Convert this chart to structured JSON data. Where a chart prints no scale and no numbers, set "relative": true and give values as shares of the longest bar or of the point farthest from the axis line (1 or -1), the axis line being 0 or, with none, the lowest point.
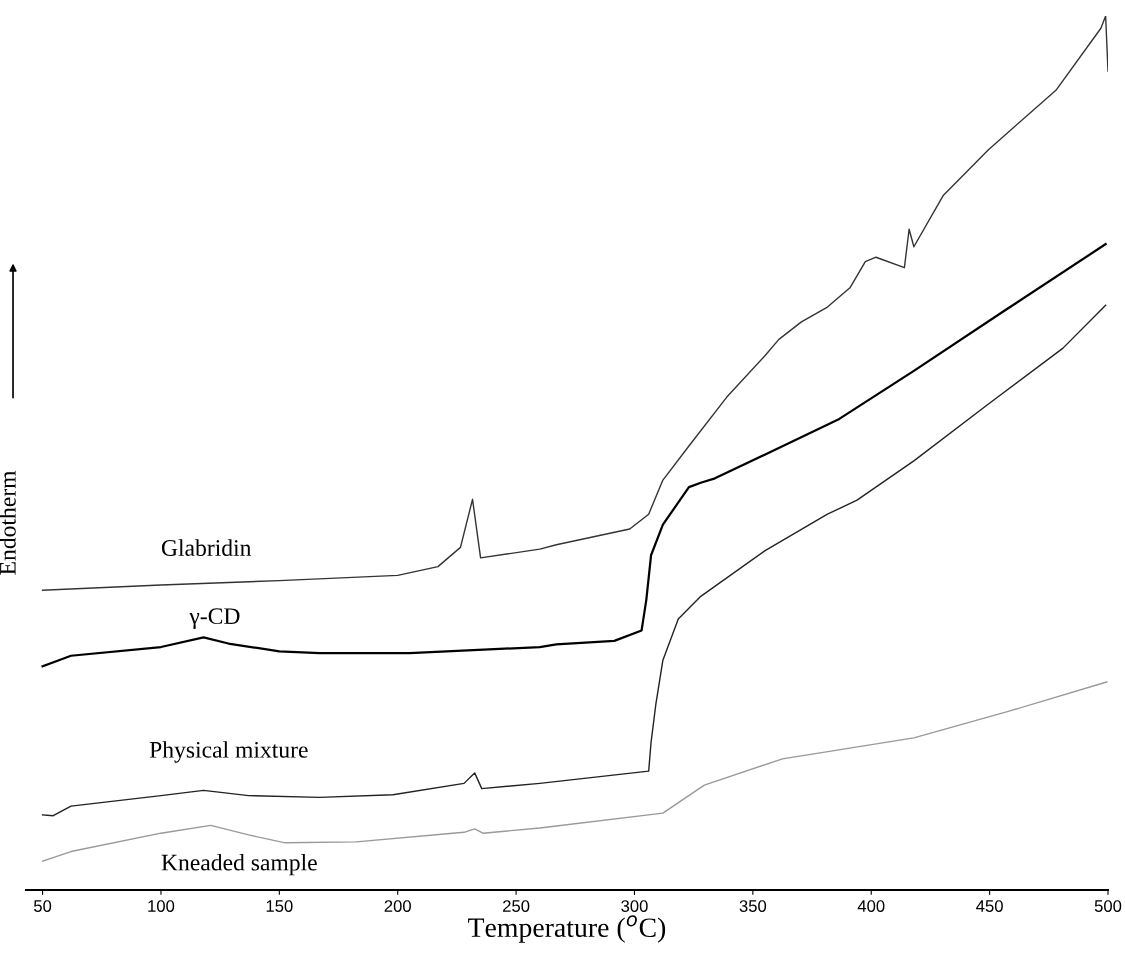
{
  "chart_data": {
    "type": "line",
    "relative": true,
    "xlabel": "Temperature ($^{o}$C)",
    "ylabel": "Endotherm",
    "xlim": [
      43,
      500
    ],
    "xticks": [
      50,
      100,
      150,
      200,
      250,
      300,
      350,
      400,
      450,
      500
    ],
    "grid": false,
    "legend": false,
    "marker": "none",
    "line_style": "solid",
    "series": [
      {
        "name": "Glabridin",
        "color": "#333333",
        "x": [
          50,
          100,
          150,
          200,
          217,
          226.5,
          231.6,
          235,
          260,
          267,
          298,
          306,
          312,
          323,
          339,
          355,
          361,
          370.5,
          381.5,
          391,
          397.5,
          402,
          414,
          416,
          418,
          430.5,
          449.5,
          478,
          497,
          499,
          500
        ],
        "values": [
          0.343,
          0.349,
          0.354,
          0.36,
          0.37,
          0.392,
          0.447,
          0.38,
          0.39,
          0.395,
          0.413,
          0.43,
          0.469,
          0.508,
          0.564,
          0.611,
          0.63,
          0.65,
          0.667,
          0.689,
          0.719,
          0.724,
          0.712,
          0.756,
          0.736,
          0.795,
          0.847,
          0.915,
          0.986,
          1.0,
          0.937
        ]
      },
      {
        "name": "γ-CD",
        "color": "#000000",
        "x": [
          50,
          62,
          100,
          118,
          128.5,
          150,
          167,
          205,
          260,
          267,
          291.5,
          303,
          305,
          307,
          312,
          323,
          328,
          334,
          355,
          386.5,
          418,
          457.5,
          499
        ],
        "values": [
          0.256,
          0.268,
          0.278,
          0.289,
          0.282,
          0.273,
          0.271,
          0.271,
          0.278,
          0.281,
          0.285,
          0.297,
          0.332,
          0.383,
          0.418,
          0.461,
          0.466,
          0.471,
          0.498,
          0.539,
          0.594,
          0.665,
          0.739
        ]
      },
      {
        "name": "Physical mixture",
        "color": "#222222",
        "x": [
          50,
          54.5,
          62,
          100,
          118,
          137,
          167,
          198,
          228,
          232.5,
          235.5,
          260,
          306,
          307,
          309,
          312,
          318.5,
          328,
          355,
          381.5,
          394,
          418,
          449.5,
          481,
          499
        ],
        "values": [
          0.086,
          0.085,
          0.096,
          0.108,
          0.114,
          0.108,
          0.106,
          0.109,
          0.122,
          0.134,
          0.116,
          0.122,
          0.136,
          0.169,
          0.212,
          0.263,
          0.31,
          0.336,
          0.388,
          0.43,
          0.446,
          0.491,
          0.556,
          0.62,
          0.669
        ]
      },
      {
        "name": "Kneaded sample",
        "color": "#999999",
        "x": [
          50,
          62,
          100,
          121,
          137,
          152.5,
          182.5,
          228,
          232.5,
          236,
          260,
          312,
          329.5,
          362.5,
          418,
          457.5,
          499.5
        ],
        "values": [
          0.033,
          0.044,
          0.065,
          0.074,
          0.063,
          0.054,
          0.055,
          0.066,
          0.07,
          0.065,
          0.071,
          0.088,
          0.12,
          0.15,
          0.174,
          0.204,
          0.238
        ]
      }
    ]
  }
}
